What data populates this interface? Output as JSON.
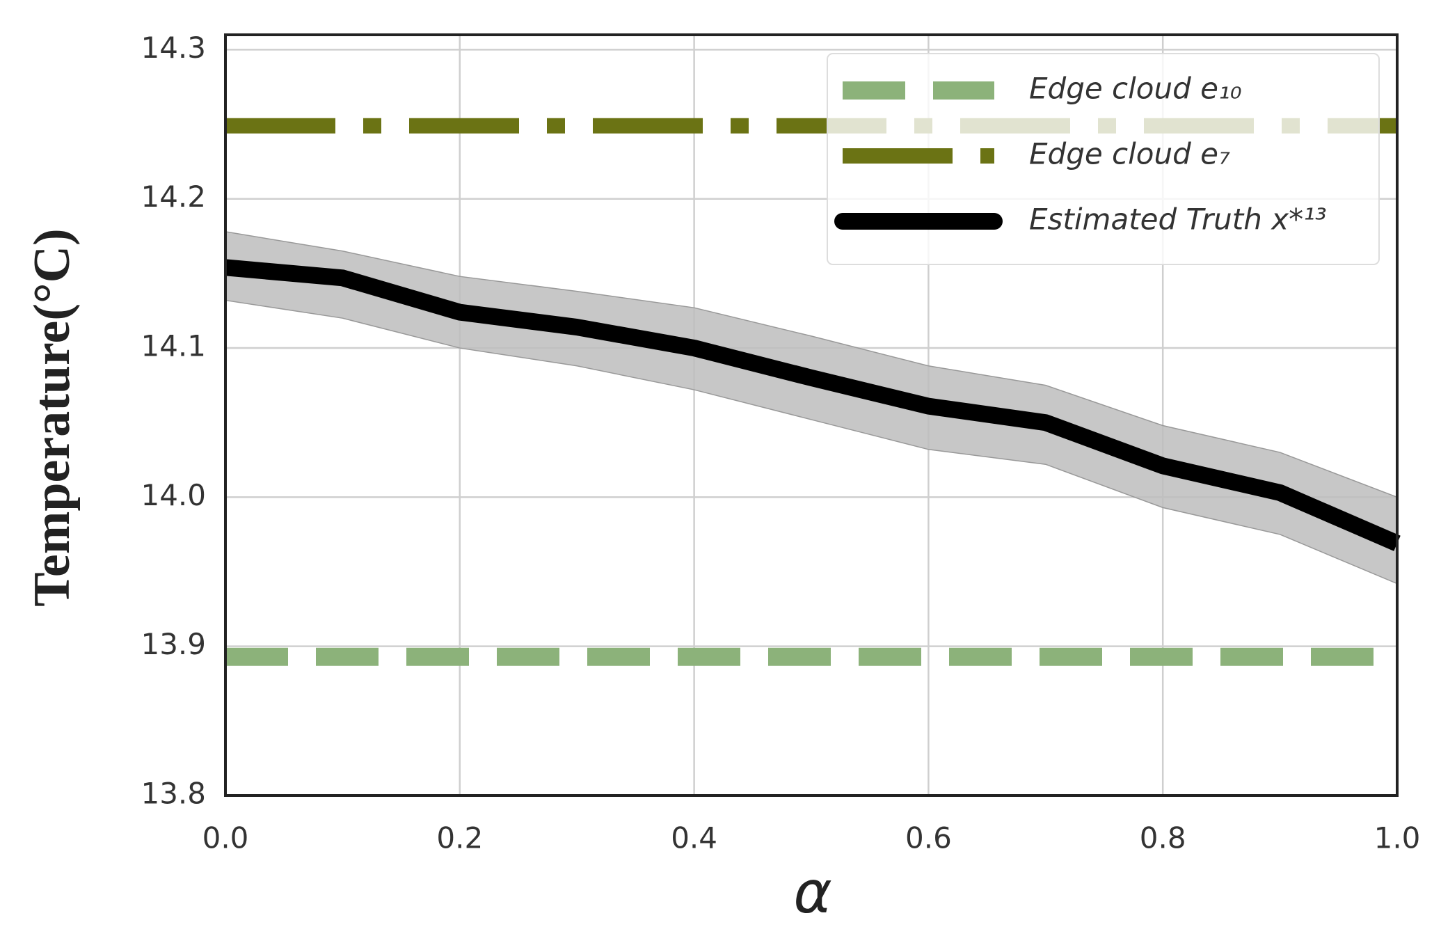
{
  "chart_data": {
    "type": "line",
    "x_label": "α",
    "y_label": "Temperature(°C)",
    "x": [
      0,
      0.1,
      0.2,
      0.3,
      0.4,
      0.5,
      0.6,
      0.7,
      0.8,
      0.9,
      1.0
    ],
    "xlim": [
      0,
      1.0
    ],
    "xticks": [
      {
        "value": 0,
        "label": "0.0"
      },
      0.2,
      0.4,
      0.6,
      0.8,
      {
        "value": 1,
        "label": "1.0"
      }
    ],
    "ylim": [
      13.8,
      14.31
    ],
    "yticks": [
      13.8,
      13.9,
      14.1,
      14.2,
      14.3,
      {
        "value": 14,
        "label": "14.0"
      }
    ],
    "grid": true,
    "legend": "upper right",
    "series": [
      {
        "name": "Edge cloud e₁₀",
        "color": "#8cb27a",
        "linestyle": "dashed",
        "values": [
          13.893,
          13.893,
          13.893,
          13.893,
          13.893,
          13.893,
          13.893,
          13.893,
          13.893,
          13.893,
          13.893
        ]
      },
      {
        "name": "Edge cloud e₇",
        "color": "#6b7314",
        "linestyle": "dashdot",
        "values": [
          14.249,
          14.249,
          14.249,
          14.249,
          14.249,
          14.249,
          14.249,
          14.249,
          14.249,
          14.249,
          14.249
        ]
      },
      {
        "name": "Estimated Truth x*¹³",
        "color": "#000000",
        "linestyle": "solid",
        "values": [
          14.154,
          14.147,
          14.124,
          14.114,
          14.1,
          14.08,
          14.061,
          14.05,
          14.021,
          14.003,
          13.969
        ],
        "band": {
          "color": "#bdbdbd",
          "lower": [
            14.132,
            14.12,
            14.1,
            14.088,
            14.072,
            14.052,
            14.032,
            14.022,
            13.993,
            13.975,
            13.942
          ],
          "upper": [
            14.178,
            14.165,
            14.148,
            14.138,
            14.127,
            14.108,
            14.088,
            14.075,
            14.048,
            14.03,
            14.0
          ]
        }
      }
    ]
  }
}
